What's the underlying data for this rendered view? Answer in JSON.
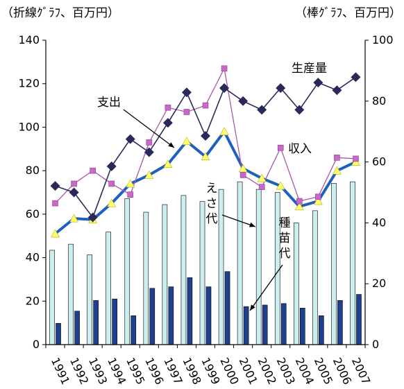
{
  "units": {
    "left": "（折線ｸﾞﾗﾌ、百万円）",
    "right": "（棒ｸﾞﾗﾌ、百万円）"
  },
  "chart_data": {
    "type": "bar+line",
    "categories": [
      "1991",
      "1992",
      "1993",
      "1994",
      "1995",
      "1996",
      "1997",
      "1998",
      "1999",
      "2000",
      "2001",
      "2002",
      "2003",
      "2004",
      "2005",
      "2006",
      "2007"
    ],
    "left_axis": {
      "range": [
        0,
        140
      ],
      "ticks": [
        "0",
        "20",
        "40",
        "60",
        "80",
        "100",
        "120",
        "140"
      ]
    },
    "right_axis": {
      "range": [
        0,
        100
      ],
      "ticks": [
        "0",
        "20",
        "40",
        "60",
        "80",
        "100"
      ]
    },
    "bar_series": [
      {
        "label": "えさ代",
        "color": "#cceeee",
        "values": [
          31,
          33,
          29.5,
          37,
          48,
          43.5,
          46,
          49,
          47,
          51,
          53.5,
          51,
          50,
          40,
          44,
          53,
          53.5
        ]
      },
      {
        "label": "種苗代",
        "color": "#1f3f8f",
        "values": [
          7,
          11,
          14.5,
          15,
          9.5,
          18.5,
          19,
          22,
          19,
          24,
          12.5,
          13,
          13.5,
          12,
          9.5,
          14.5,
          16.5
        ]
      }
    ],
    "line_series": [
      {
        "label": "支出",
        "color": "#1f5fbf",
        "marker": "triangle",
        "marker_color": "#ffff66",
        "values": [
          51,
          58,
          57.5,
          65,
          74,
          78,
          83,
          93.5,
          86.5,
          98,
          81,
          76.5,
          73,
          63.5,
          66,
          80,
          84
        ]
      },
      {
        "label": "収入",
        "color": "#aa55aa",
        "marker": "square",
        "marker_color": "#cc66cc",
        "values": [
          65,
          74,
          80,
          74,
          69,
          93,
          109,
          107,
          110,
          127,
          78,
          72.5,
          90.5,
          66,
          68,
          86,
          85.5
        ]
      },
      {
        "label": "生産量",
        "color": "#2a2a5a",
        "marker": "diamond",
        "marker_color": "#2a2a5a",
        "values": [
          73,
          70,
          58.5,
          82,
          94.5,
          88.5,
          102,
          116,
          96,
          118,
          112,
          108,
          118,
          108,
          120.5,
          117,
          123
        ]
      }
    ],
    "annotations": {
      "expense": "支出",
      "income": "収入",
      "production": "生産量",
      "feed": "えさ代",
      "seed": "種苗代"
    }
  }
}
